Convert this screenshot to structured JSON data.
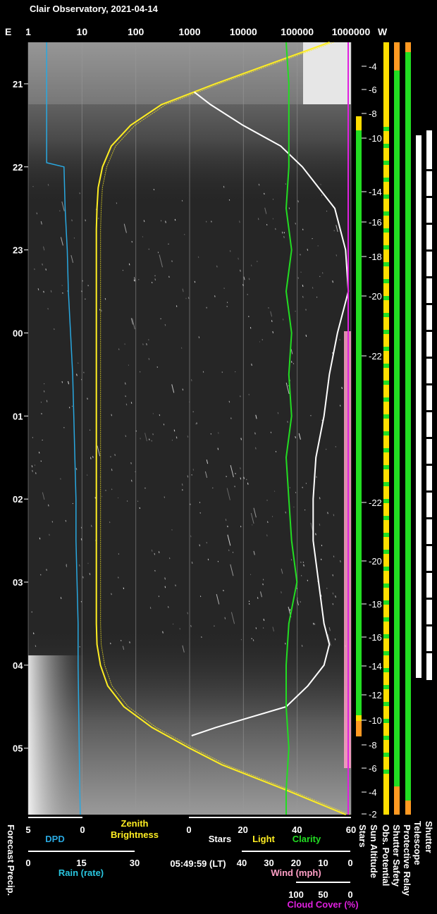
{
  "title": "Clair Observatory, 2021-04-14",
  "timestamp": "05:49:59 (LT)",
  "colors": {
    "dpd": "#29a8e0",
    "rain": "#29c6e0",
    "brightness": "#ffee22",
    "stars": "#ffffff",
    "light": "#ffee22",
    "clarity": "#22dd22",
    "wind": "#ff9fc6",
    "cloud": "#e020e0",
    "ok": "#22dd22",
    "warn": "#ffdd00",
    "alert": "#ff9922"
  },
  "top_axis": {
    "left_letter": "E",
    "right_letter": "W",
    "ticks": [
      "1",
      "10",
      "100",
      "1000",
      "10000",
      "100000",
      "1000000"
    ]
  },
  "hours": [
    "21",
    "22",
    "23",
    "00",
    "01",
    "02",
    "03",
    "04",
    "05"
  ],
  "sun_altitude_labels": [
    "-4",
    "-6",
    "-8",
    "-10",
    "-14",
    "-16",
    "-18",
    "-20",
    "-22",
    "-22",
    "-20",
    "-18",
    "-16",
    "-14",
    "-12",
    "-10",
    "-8",
    "-6",
    "-4",
    "-2"
  ],
  "bottom": {
    "dpd_ticks": [
      "5",
      "0"
    ],
    "dpd_label": "DPD",
    "zenith_label_1": "Zenith",
    "zenith_label_2": "Brightness",
    "stars_ticks": [
      "0",
      "20",
      "40",
      "60"
    ],
    "stars_label": "Stars",
    "light_label": "Light",
    "clarity_label": "Clarity",
    "rain_ticks": [
      "0",
      "15",
      "30"
    ],
    "rain_label": "Rain (rate)",
    "wind_ticks": [
      "40",
      "30",
      "20",
      "10",
      "0"
    ],
    "wind_label": "Wind (mph)",
    "cloud_ticks": [
      "100",
      "50",
      "0"
    ],
    "cloud_label": "Cloud Cover (%)"
  },
  "vertical_labels": {
    "forecast": "Forecast Precip.",
    "stars": "Stars",
    "sun": "Sun Altitude",
    "obs": "Obs. Potential",
    "shutter_safety": "Shutter Safety",
    "relay": "Protective Relay",
    "telescope": "Telescope",
    "shutter": "Shutter"
  },
  "chart_data": {
    "type": "line",
    "title": "Clair Observatory, 2021-04-14",
    "time_range_local": [
      "20:30",
      "05:49"
    ],
    "zenith_brightness_scale": "log",
    "zenith_brightness_ticks": [
      1,
      10,
      100,
      1000,
      10000,
      100000,
      1000000
    ],
    "series": [
      {
        "name": "Zenith Brightness",
        "x": [
          20.5,
          21.0,
          21.1,
          21.25,
          21.5,
          21.75,
          22.0,
          22.25,
          22.5,
          22.75,
          23.0,
          23.5,
          24.0,
          24.5,
          25.0,
          25.5,
          26.0,
          26.5,
          27.0,
          27.5,
          27.75,
          28.0,
          28.25,
          28.5,
          28.75,
          29.0,
          29.2,
          29.5,
          29.8
        ],
        "y": [
          400000,
          3000,
          1200,
          300,
          80,
          35,
          24,
          20,
          19,
          18.5,
          18.5,
          18.5,
          18.5,
          18.5,
          18.5,
          18.5,
          18.5,
          18.5,
          18.5,
          18.5,
          19,
          22,
          30,
          60,
          200,
          1000,
          4000,
          60000,
          800000
        ]
      },
      {
        "name": "Stars",
        "x": [
          21.1,
          21.25,
          21.5,
          21.75,
          22.0,
          22.25,
          22.5,
          23.0,
          23.5,
          24.0,
          24.5,
          25.0,
          25.5,
          26.0,
          26.5,
          27.0,
          27.5,
          27.75,
          28.0,
          28.25,
          28.5,
          28.75,
          28.85
        ],
        "y": [
          2,
          8,
          20,
          34,
          42,
          48,
          54,
          58,
          59,
          55,
          52,
          50,
          47,
          46,
          46,
          48,
          50,
          52,
          50,
          44,
          36,
          10,
          1
        ]
      },
      {
        "name": "Clarity",
        "x": [
          20.5,
          21.0,
          21.5,
          22.0,
          22.5,
          23.0,
          23.5,
          24.0,
          24.5,
          25.0,
          25.5,
          26.0,
          26.5,
          27.0,
          27.5,
          28.0,
          28.5,
          29.0,
          29.5,
          29.8
        ],
        "y": [
          36,
          37,
          37,
          37,
          36,
          38,
          36,
          38,
          37,
          38,
          36,
          37,
          38,
          40,
          37,
          36,
          36,
          37,
          36,
          36
        ]
      },
      {
        "name": "DPD",
        "x": [
          20.5,
          21.0,
          21.5,
          21.95,
          22.0,
          22.5,
          23.0,
          23.5,
          24.0,
          24.5,
          25.0,
          25.5,
          26.0,
          26.5,
          27.0,
          27.5,
          28.0,
          28.5,
          29.0,
          29.5,
          29.8
        ],
        "y": [
          3.3,
          3.3,
          3.3,
          3.3,
          1.7,
          1.6,
          1.4,
          1.3,
          1.1,
          0.9,
          0.8,
          0.7,
          0.6,
          0.6,
          0.5,
          0.4,
          0.4,
          0.35,
          0.3,
          0.25,
          0.2
        ]
      }
    ]
  }
}
